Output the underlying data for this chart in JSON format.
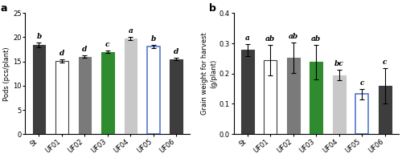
{
  "categories": [
    "St",
    "UF01",
    "UF02",
    "UF03",
    "UF04",
    "UF05",
    "UF06"
  ],
  "panel_a": {
    "title": "a",
    "ylabel": "Pods (pcs/plant)",
    "ylim": [
      0,
      25
    ],
    "yticks": [
      0,
      5,
      10,
      15,
      20,
      25
    ],
    "values": [
      18.4,
      15.1,
      16.0,
      17.0,
      19.7,
      18.1,
      15.5
    ],
    "errors": [
      0.5,
      0.3,
      0.3,
      0.3,
      0.35,
      0.35,
      0.3
    ],
    "letters": [
      "b",
      "d",
      "d",
      "c",
      "a",
      "b",
      "d"
    ],
    "bar_colors": [
      "#3d3d3d",
      "#ffffff",
      "#7a7a7a",
      "#2e8b2e",
      "#c8c8c8",
      "#ffffff",
      "#3d3d3d"
    ],
    "edge_colors": [
      "#3d3d3d",
      "#3d3d3d",
      "#7a7a7a",
      "#2e8b2e",
      "#c8c8c8",
      "#5577cc",
      "#3d3d3d"
    ],
    "edge_widths": [
      0.8,
      0.8,
      0.8,
      0.8,
      0.8,
      1.2,
      0.8
    ]
  },
  "panel_b": {
    "title": "b",
    "ylabel": "Grain weight for harvest\n(g/plant)",
    "ylim": [
      0,
      0.4
    ],
    "yticks": [
      0.0,
      0.1,
      0.2,
      0.3,
      0.4
    ],
    "values": [
      0.278,
      0.244,
      0.252,
      0.238,
      0.195,
      0.132,
      0.16
    ],
    "errors": [
      0.02,
      0.05,
      0.05,
      0.058,
      0.018,
      0.018,
      0.058
    ],
    "letters": [
      "a",
      "ab",
      "ab",
      "ab",
      "bc",
      "c",
      "c"
    ],
    "bar_colors": [
      "#3d3d3d",
      "#ffffff",
      "#7a7a7a",
      "#2e8b2e",
      "#c8c8c8",
      "#ffffff",
      "#3d3d3d"
    ],
    "edge_colors": [
      "#3d3d3d",
      "#3d3d3d",
      "#7a7a7a",
      "#2e8b2e",
      "#c8c8c8",
      "#5577cc",
      "#3d3d3d"
    ],
    "edge_widths": [
      0.8,
      0.8,
      0.8,
      0.8,
      0.8,
      1.2,
      0.8
    ]
  },
  "font_size": 6,
  "letter_font_size": 6.5,
  "title_font_size": 9,
  "bar_width": 0.55,
  "capsize": 2,
  "error_color": "#000000",
  "background_color": "#ffffff"
}
